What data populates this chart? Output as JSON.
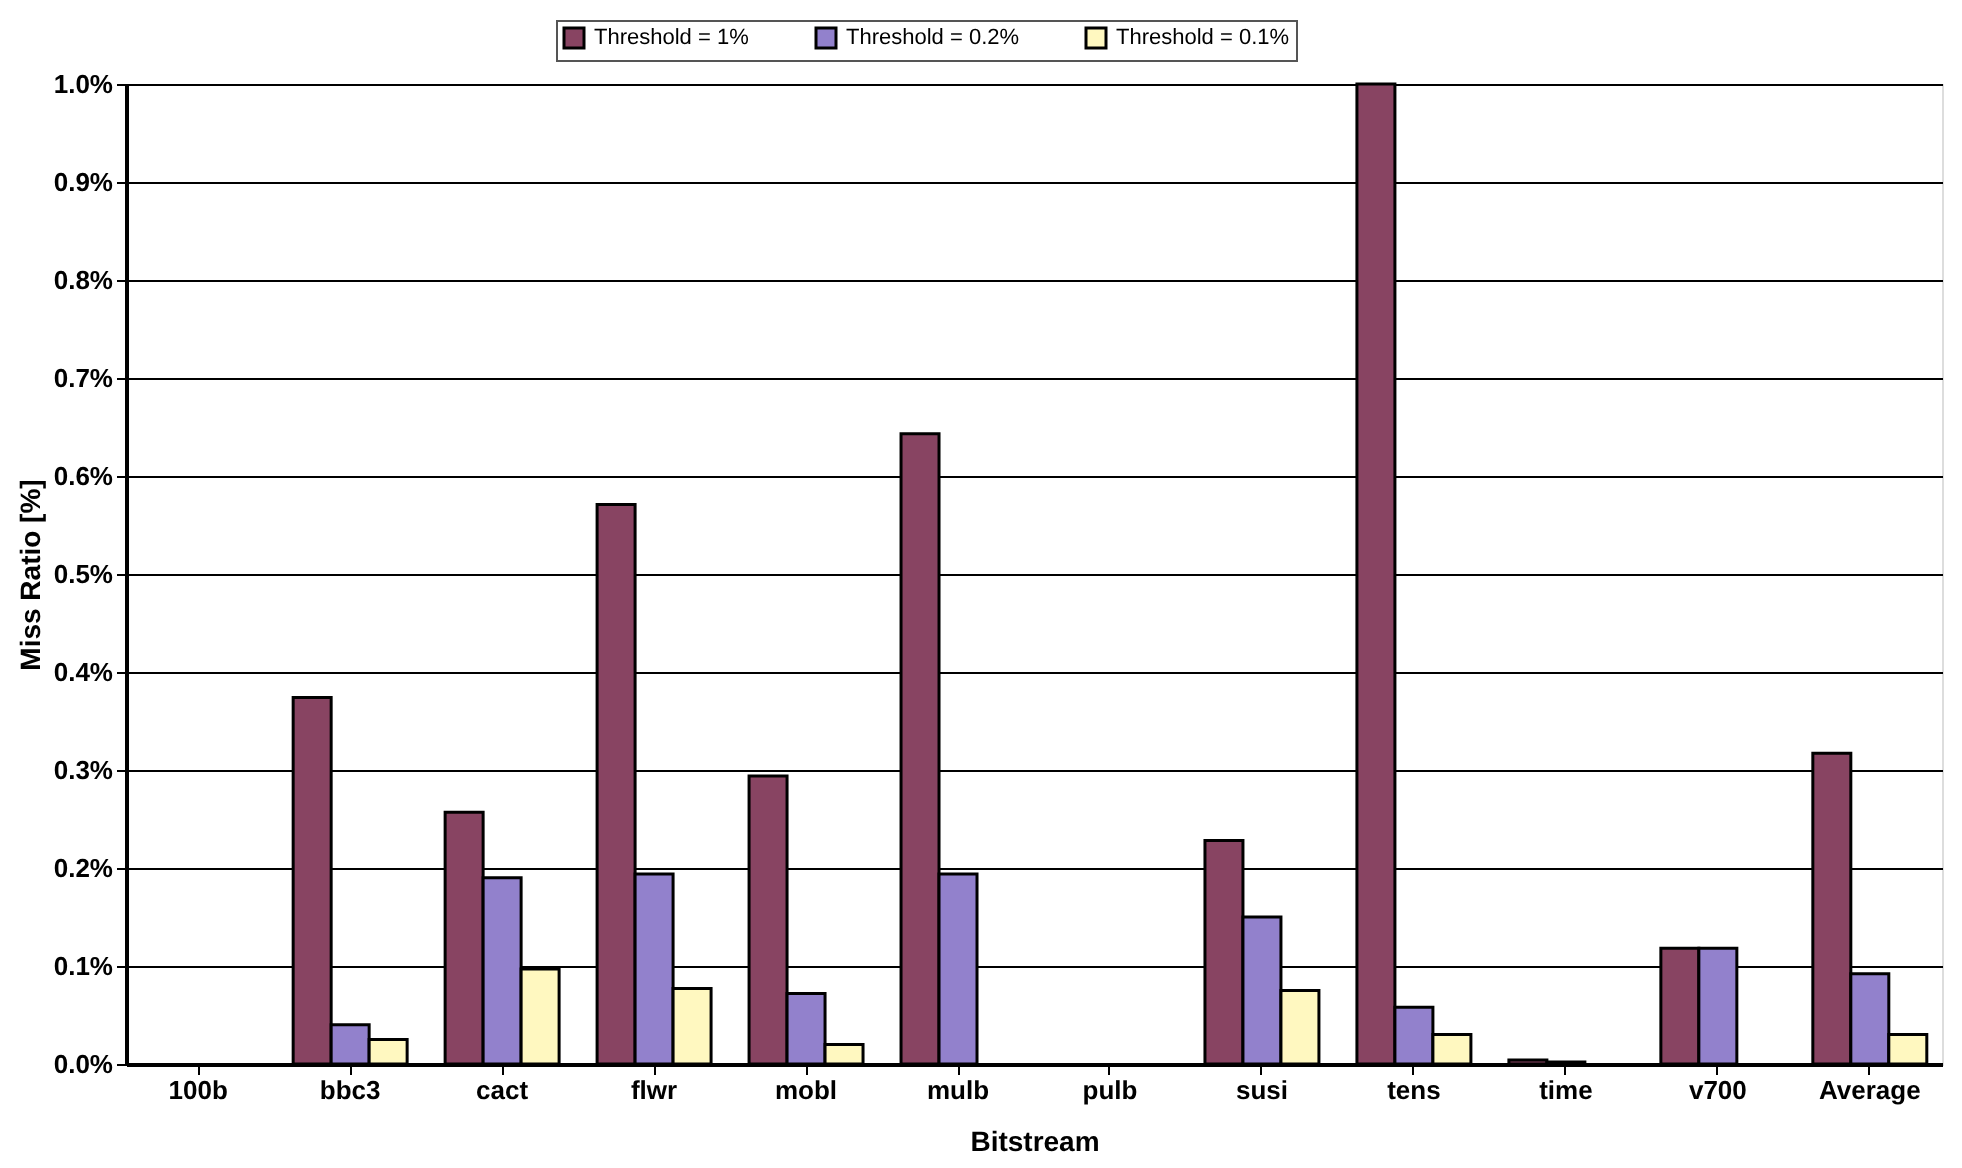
{
  "chart_data": {
    "type": "bar",
    "xlabel": "Bitstream",
    "ylabel": "Miss Ratio [%]",
    "categories": [
      "100b",
      "bbc3",
      "cact",
      "flwr",
      "mobl",
      "mulb",
      "pulb",
      "susi",
      "tens",
      "time",
      "v700",
      "Average"
    ],
    "series": [
      {
        "name": "Threshold = 1%",
        "color": "#884462",
        "values": [
          0,
          0.374,
          0.257,
          0.571,
          0.294,
          0.643,
          0,
          0.228,
          1.0,
          0.004,
          0.118,
          0.317
        ]
      },
      {
        "name": "Threshold = 0.2%",
        "color": "#9281cc",
        "values": [
          0,
          0.04,
          0.19,
          0.194,
          0.072,
          0.194,
          0,
          0.15,
          0.058,
          0.002,
          0.118,
          0.092
        ]
      },
      {
        "name": "Threshold = 0.1%",
        "color": "#fff8c0",
        "values": [
          0,
          0.025,
          0.097,
          0.077,
          0.02,
          0,
          0,
          0.075,
          0.03,
          0,
          0,
          0.03
        ]
      }
    ],
    "ylim": [
      0,
      1.0
    ],
    "yticks": [
      {
        "value": 0,
        "label": "0.0%"
      },
      {
        "value": 0.1,
        "label": "0.1%"
      },
      {
        "value": 0.2,
        "label": "0.2%"
      },
      {
        "value": 0.3,
        "label": "0.3%"
      },
      {
        "value": 0.4,
        "label": "0.4%"
      },
      {
        "value": 0.5,
        "label": "0.5%"
      },
      {
        "value": 0.6,
        "label": "0.6%"
      },
      {
        "value": 0.7,
        "label": "0.7%"
      },
      {
        "value": 0.8,
        "label": "0.8%"
      },
      {
        "value": 0.9,
        "label": "0.9%"
      },
      {
        "value": 1.0,
        "label": "1.0%"
      }
    ],
    "grid": "y",
    "legend": "top"
  }
}
